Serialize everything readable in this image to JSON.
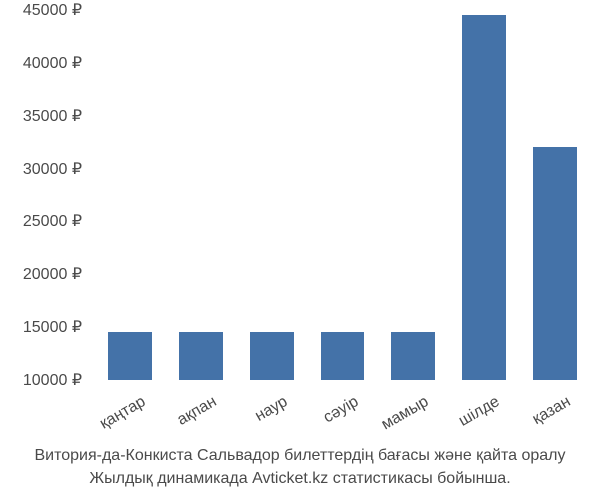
{
  "chart": {
    "type": "bar",
    "categories": [
      "қаңтар",
      "ақпан",
      "наур",
      "сәуір",
      "мамыр",
      "шілде",
      "қазан"
    ],
    "values": [
      14500,
      14500,
      14500,
      14500,
      14500,
      44500,
      32000
    ],
    "bar_color": "#4472a8",
    "y_min": 10000,
    "y_max": 45000,
    "y_ticks": [
      10000,
      15000,
      20000,
      25000,
      30000,
      35000,
      40000,
      45000
    ],
    "y_labels": [
      "10000 ₽",
      "15000 ₽",
      "20000 ₽",
      "25000 ₽",
      "30000 ₽",
      "35000 ₽",
      "40000 ₽",
      "45000 ₽"
    ],
    "currency": "₽",
    "bar_width_ratio": 0.62,
    "background_color": "#ffffff",
    "text_color": "#4a4a4a",
    "label_fontsize": 16,
    "tick_fontsize": 16,
    "x_label_rotation": -30
  },
  "caption": {
    "line1": "Витория-да-Конкиста Сальвадор билеттердің бағасы және қайта оралу",
    "line2": "Жылдық динамикада Avticket.kz статистикасы бойынша."
  }
}
